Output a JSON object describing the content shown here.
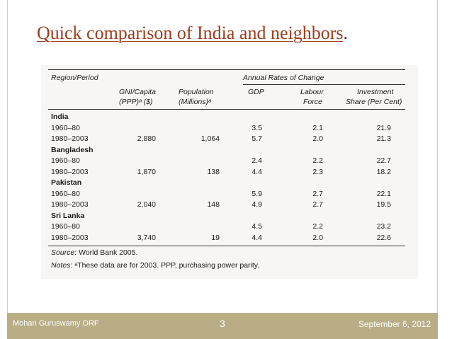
{
  "slide": {
    "title_main": "Quick comparison of India and neighbors",
    "title_end": ".",
    "footer_left": "Mohan Guruswamy ORF",
    "page_number": "3",
    "footer_right": "September 6, 2012"
  },
  "table": {
    "headers": {
      "region": "Region/Period",
      "annual": "Annual Rates of Change",
      "gni_1": "GNI/Capita",
      "gni_2": "(PPP)ᵃ ($)",
      "pop_1": "Population",
      "pop_2": "(Millions)ᵃ",
      "gdp": "GDP",
      "labour_1": "Labour",
      "labour_2": "Force",
      "inv_1": "Investment",
      "inv_2": "Share (Per Cent)"
    },
    "groups": [
      {
        "name": "India",
        "rows": [
          {
            "period": "1960–80",
            "gni": "",
            "pop": "",
            "gdp": "3.5",
            "labour": "2.1",
            "inv": "21.9"
          },
          {
            "period": "1980–2003",
            "gni": "2,880",
            "pop": "1,064",
            "gdp": "5.7",
            "labour": "2.0",
            "inv": "21.3"
          }
        ]
      },
      {
        "name": "Bangladesh",
        "rows": [
          {
            "period": "1960–80",
            "gni": "",
            "pop": "",
            "gdp": "2.4",
            "labour": "2.2",
            "inv": "22.7"
          },
          {
            "period": "1980–2003",
            "gni": "1,870",
            "pop": "138",
            "gdp": "4.4",
            "labour": "2.3",
            "inv": "18.2"
          }
        ]
      },
      {
        "name": "Pakistan",
        "rows": [
          {
            "period": "1960–80",
            "gni": "",
            "pop": "",
            "gdp": "5.9",
            "labour": "2.7",
            "inv": "22.1"
          },
          {
            "period": "1980–2003",
            "gni": "2,040",
            "pop": "148",
            "gdp": "4.9",
            "labour": "2.7",
            "inv": "19.5"
          }
        ]
      },
      {
        "name": "Sri Lanka",
        "rows": [
          {
            "period": "1960–80",
            "gni": "",
            "pop": "",
            "gdp": "4.5",
            "labour": "2.2",
            "inv": "23.2"
          },
          {
            "period": "1980–2003",
            "gni": "3,740",
            "pop": "19",
            "gdp": "4.4",
            "labour": "2.0",
            "inv": "22.6"
          }
        ]
      }
    ],
    "source_label": "Source",
    "source_text": ": World Bank 2005.",
    "notes_label": "Notes",
    "notes_text": ": ᵃThese data are for 2003. PPP, purchasing power parity."
  }
}
